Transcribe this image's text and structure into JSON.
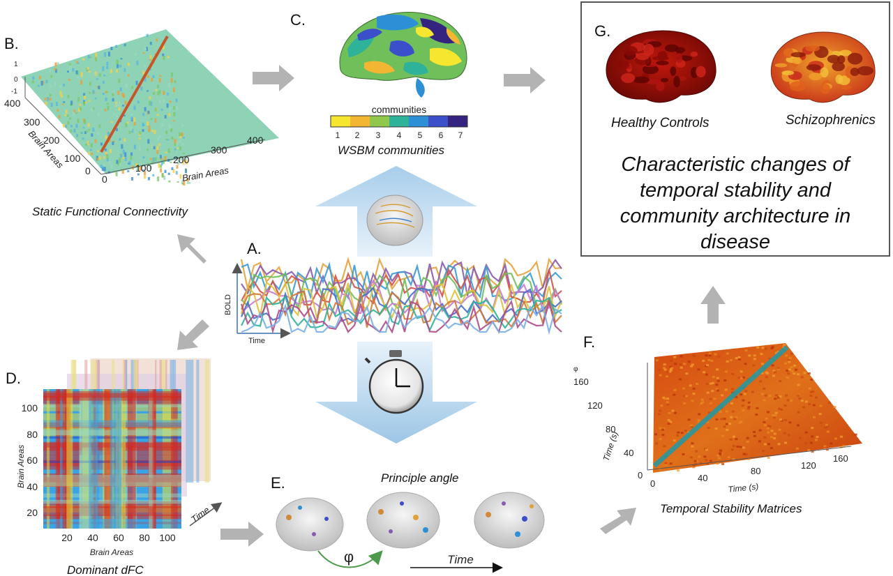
{
  "panels": {
    "a": {
      "label": "A.",
      "axis_y": "BOLD",
      "axis_x": "Time"
    },
    "b": {
      "label": "B.",
      "caption": "Static Functional Connectivity",
      "axis_label": "Brain Areas",
      "axis_label_depth": "Brain Areas",
      "z_ticks": [
        "1",
        "0",
        "-1"
      ],
      "depth_ticks": [
        "400",
        "300",
        "200",
        "100",
        "0"
      ],
      "x_ticks": [
        "0",
        "100",
        "200",
        "300",
        "400"
      ]
    },
    "c": {
      "label": "C.",
      "legend_title": "communities",
      "legend_ticks": [
        "1",
        "2",
        "3",
        "4",
        "5",
        "6",
        "7"
      ],
      "legend_colors": [
        "#f7e62f",
        "#f2b632",
        "#8fc84a",
        "#2eb39a",
        "#2d8fd6",
        "#3a4fc9",
        "#34237f"
      ],
      "caption": "WSBM communities"
    },
    "d": {
      "label": "D.",
      "caption": "Dominant dFC",
      "y_ticks": [
        "100",
        "80",
        "60",
        "40",
        "20"
      ],
      "x_ticks": [
        "20",
        "40",
        "60",
        "80",
        "100"
      ],
      "x_axis_label": "Brain Areas",
      "y_axis_label": "Brain Areas",
      "stack_label": "Time"
    },
    "e": {
      "label": "E.",
      "title": "Principle angle",
      "phi": "φ",
      "time_label": "Time"
    },
    "f": {
      "label": "F.",
      "caption": "Temporal Stability Matrices",
      "y_axis_label": "Time (s)",
      "x_axis_label": "Time (s)",
      "y_ticks": [
        "160",
        "120",
        "80",
        "40",
        "0"
      ],
      "x_ticks": [
        "0",
        "40",
        "80",
        "120",
        "160"
      ],
      "z_label": "φ"
    },
    "g": {
      "label": "G.",
      "group1": "Healthy Controls",
      "group2": "Schizophrenics",
      "statement": "Characteristic changes of temporal stability and community architecture in disease"
    }
  },
  "colors": {
    "arrow_gray": "#b3b3b3",
    "blue_arrow": "#9cc6e6",
    "box_border": "#555555"
  },
  "icons": [
    "brain-network-icon",
    "stopwatch-icon"
  ]
}
